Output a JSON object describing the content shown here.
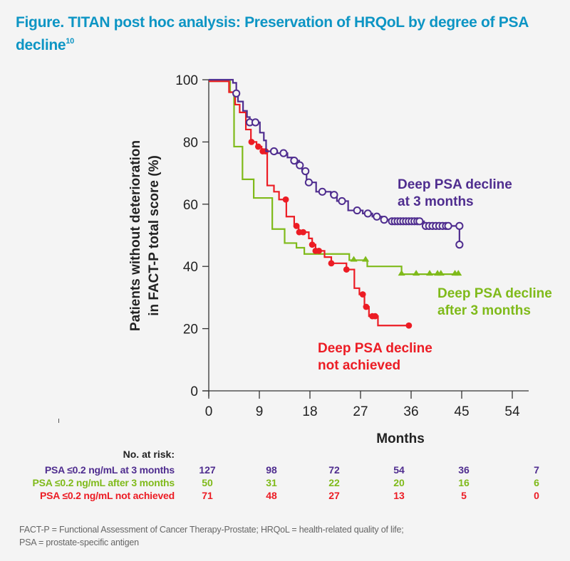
{
  "title": {
    "text": "Figure. TITAN post hoc analysis: Preservation of HRQoL by degree of PSA decline",
    "superscript": "10"
  },
  "colors": {
    "title": "#0d95c4",
    "purple": "#4f2d8f",
    "green": "#7fba1a",
    "red": "#ec1c24",
    "axis": "#333333",
    "footnote": "#666666"
  },
  "chart_data": {
    "type": "line",
    "subtype": "kaplan-meier step",
    "title": "TITAN post hoc analysis: Preservation of HRQoL by degree of PSA decline",
    "xlabel": "Months",
    "ylabel": "Patients without deterioration in FACT-P total score (%)",
    "ylabel_lines": [
      "Patients without deterioration",
      "in FACT-P total score (%)"
    ],
    "xlim": [
      0,
      54
    ],
    "ylim": [
      0,
      100
    ],
    "xticks": [
      0,
      9,
      18,
      27,
      36,
      45,
      54
    ],
    "yticks": [
      0,
      20,
      40,
      60,
      80,
      100
    ],
    "grid": false,
    "series": [
      {
        "name": "Deep PSA decline at 3 months",
        "label_lines": [
          "Deep PSA decline",
          "at 3 months"
        ],
        "color_key": "purple",
        "marker": "open-circle",
        "steps": [
          [
            0,
            100
          ],
          [
            4.3,
            99
          ],
          [
            4.9,
            95.6
          ],
          [
            5.2,
            93
          ],
          [
            6.1,
            90
          ],
          [
            6.8,
            88
          ],
          [
            7.3,
            86.3
          ],
          [
            9.1,
            83
          ],
          [
            9.8,
            80.5
          ],
          [
            10.2,
            77
          ],
          [
            12.2,
            76.4
          ],
          [
            14.0,
            75
          ],
          [
            15.0,
            74
          ],
          [
            16.1,
            72.5
          ],
          [
            16.6,
            70.6
          ],
          [
            17.4,
            67
          ],
          [
            19.1,
            64
          ],
          [
            21.7,
            63
          ],
          [
            22.8,
            61
          ],
          [
            24.8,
            58
          ],
          [
            27.4,
            57
          ],
          [
            29.1,
            56
          ],
          [
            30.8,
            55
          ],
          [
            32.1,
            54.5
          ],
          [
            38.3,
            53
          ],
          [
            44.6,
            47
          ]
        ],
        "end": 44.6,
        "censored": [
          4.9,
          7.3,
          8.3,
          11.6,
          13.3,
          15.2,
          16.2,
          17.2,
          17.8,
          20.2,
          22.3,
          23.7,
          26.4,
          28.3,
          29.9,
          31.2,
          32.6,
          33.1,
          33.6,
          34.1,
          34.6,
          35.1,
          35.6,
          36.1,
          36.6,
          37.1,
          37.5,
          38.6,
          39.2,
          39.8,
          40.4,
          41.0,
          41.6,
          42.2,
          42.6,
          44.6,
          44.6
        ]
      },
      {
        "name": "Deep PSA decline after 3 months",
        "label_lines": [
          "Deep PSA decline",
          "after 3 months"
        ],
        "color_key": "green",
        "marker": "triangle",
        "steps": [
          [
            0,
            99.5
          ],
          [
            3.8,
            96
          ],
          [
            4.5,
            78.5
          ],
          [
            6.0,
            68
          ],
          [
            8.0,
            62
          ],
          [
            11.3,
            52
          ],
          [
            13.5,
            47.5
          ],
          [
            15.6,
            46
          ],
          [
            17.0,
            44
          ],
          [
            25.0,
            42
          ],
          [
            28.2,
            40
          ],
          [
            34.3,
            37.5
          ]
        ],
        "end": 44.5,
        "censored": [
          25.8,
          27.9,
          34.3,
          36.9,
          39.3,
          40.7,
          41.3,
          43.8,
          44.4
        ]
      },
      {
        "name": "Deep PSA decline not achieved",
        "label_lines": [
          "Deep PSA decline",
          "not achieved"
        ],
        "color_key": "red",
        "marker": "filled-circle",
        "steps": [
          [
            0,
            99.5
          ],
          [
            3.6,
            96
          ],
          [
            4.7,
            92
          ],
          [
            5.5,
            89.5
          ],
          [
            6.6,
            84
          ],
          [
            7.5,
            80
          ],
          [
            8.5,
            78.5
          ],
          [
            9.4,
            77
          ],
          [
            10.4,
            66
          ],
          [
            11.6,
            64
          ],
          [
            12.5,
            61.5
          ],
          [
            13.8,
            56
          ],
          [
            15.2,
            53
          ],
          [
            16.0,
            51
          ],
          [
            17.8,
            49
          ],
          [
            18.4,
            47
          ],
          [
            19.0,
            45
          ],
          [
            20.6,
            43
          ],
          [
            21.8,
            41
          ],
          [
            24.5,
            39
          ],
          [
            25.9,
            33
          ],
          [
            26.8,
            31
          ],
          [
            27.7,
            27
          ],
          [
            28.5,
            24
          ],
          [
            30.1,
            21
          ]
        ],
        "end": 36.1,
        "censored": [
          7.6,
          8.8,
          9.6,
          10.1,
          13.7,
          15.6,
          16.1,
          16.8,
          18.4,
          19.0,
          19.6,
          21.8,
          24.5,
          27.4,
          28.0,
          29.1,
          29.6,
          35.6
        ]
      }
    ]
  },
  "risk_table": {
    "header": "No. at risk:",
    "timepoints": [
      0,
      9,
      18,
      27,
      36,
      45
    ],
    "rows": [
      {
        "label": "PSA ≤0.2 ng/mL at 3 months",
        "color_key": "purple",
        "values": [
          "127",
          "98",
          "72",
          "54",
          "36",
          "7"
        ]
      },
      {
        "label": "PSA ≤0.2 ng/mL after 3 months",
        "color_key": "green",
        "values": [
          "50",
          "31",
          "22",
          "20",
          "16",
          "6"
        ]
      },
      {
        "label": "PSA ≤0.2 ng/mL not achieved",
        "color_key": "red",
        "values": [
          "71",
          "48",
          "27",
          "13",
          "5",
          "0"
        ]
      }
    ]
  },
  "footnote": {
    "line1": "FACT-P = Functional Assessment of Cancer Therapy-Prostate; HRQoL = health-related quality of life;",
    "line2": "PSA = prostate-specific antigen"
  }
}
